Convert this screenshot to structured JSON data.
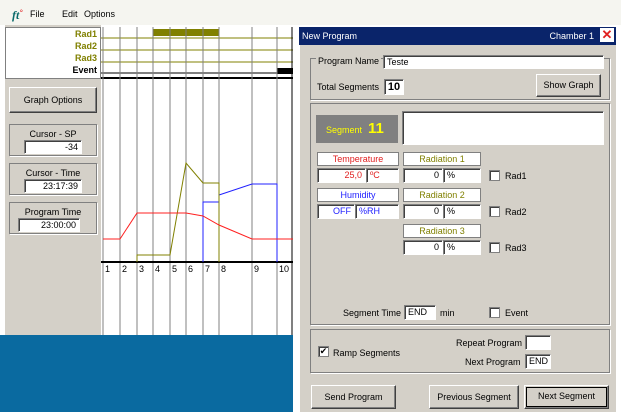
{
  "menu": {
    "file": "File",
    "edit": "Edit",
    "options": "Options"
  },
  "left": {
    "rad_labels": [
      "Rad1",
      "Rad2",
      "Rad3",
      "Event"
    ],
    "graph_options": "Graph Options",
    "cursor_sp_label": "Cursor - SP",
    "cursor_sp_value": "-34",
    "cursor_time_label": "Cursor - Time",
    "cursor_time_value": "23:17:39",
    "program_time_label": "Program Time",
    "program_time_value": "23:00:00"
  },
  "graph": {
    "segment_numbers": [
      "1",
      "2",
      "3",
      "4",
      "5",
      "6",
      "7",
      "8",
      "9",
      "10"
    ],
    "colors": {
      "temperature": "#ff2020",
      "humidity": "#2020ff",
      "radiation": "#808000",
      "event": "#000000",
      "rad1_bar": "#808000"
    }
  },
  "dialog": {
    "title": "New Program",
    "chamber": "Chamber 1",
    "program_name_label": "Program Name",
    "program_name_value": "Teste",
    "total_segments_label": "Total Segments",
    "total_segments_value": "10",
    "show_graph": "Show Graph",
    "segment_label": "Segment",
    "segment_value": "11",
    "temperature_label": "Temperature",
    "temperature_value": "25,0",
    "temperature_unit": "ºC",
    "humidity_label": "Humidity",
    "humidity_value": "OFF",
    "humidity_unit": "%RH",
    "radiation1_label": "Radiation 1",
    "radiation1_value": "0",
    "radiation2_label": "Radiation 2",
    "radiation2_value": "0",
    "radiation3_label": "Radiation 3",
    "radiation3_value": "0",
    "percent": "%",
    "rad1": "Rad1",
    "rad2": "Rad2",
    "rad3": "Rad3",
    "segment_time_label": "Segment Time",
    "segment_time_value": "END",
    "segment_time_unit": "min",
    "event_label": "Event",
    "ramp_segments": "Ramp Segments",
    "ramp_checked": "✔",
    "repeat_program_label": "Repeat Program",
    "repeat_program_value": "",
    "next_program_label": "Next Program",
    "next_program_value": "END",
    "send_program": "Send Program",
    "previous_segment": "Previous Segment",
    "next_segment": "Next Segment"
  }
}
